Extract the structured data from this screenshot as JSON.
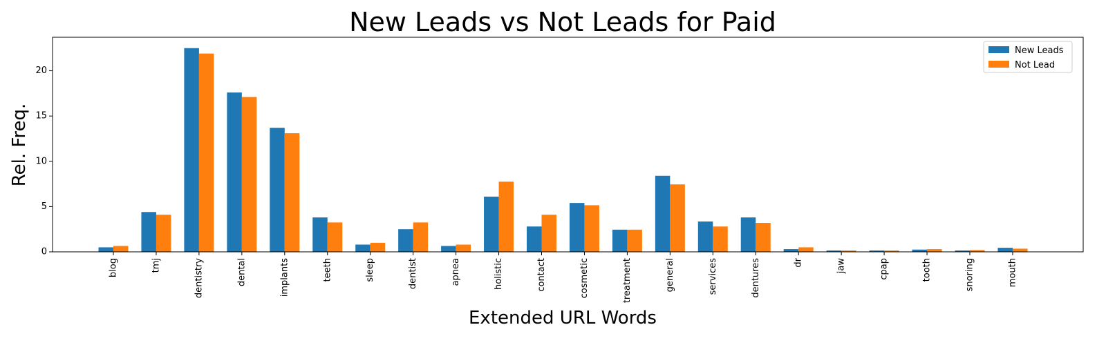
{
  "chart_data": {
    "type": "bar",
    "title": "New Leads vs Not Leads for Paid",
    "xlabel": "Extended URL Words",
    "ylabel": "Rel. Freq.",
    "ylim": [
      0,
      23.7
    ],
    "yticks": [
      0,
      5,
      10,
      15,
      20
    ],
    "grid": false,
    "legend_position": "top-right",
    "categories": [
      "blog",
      "tmj",
      "dentistry",
      "dental",
      "implants",
      "teeth",
      "sleep",
      "dentist",
      "apnea",
      "holistic",
      "contact",
      "cosmetic",
      "treatment",
      "general",
      "services",
      "dentures",
      "dr",
      "jaw",
      "cpap",
      "tooth",
      "snoring",
      "mouth"
    ],
    "series": [
      {
        "name": "New Leads",
        "color": "#1f77b4",
        "values": [
          0.5,
          4.4,
          22.5,
          17.6,
          13.7,
          3.8,
          0.8,
          2.5,
          0.65,
          6.1,
          2.8,
          5.4,
          2.45,
          8.4,
          3.35,
          3.8,
          0.3,
          0.15,
          0.15,
          0.25,
          0.15,
          0.45
        ]
      },
      {
        "name": "Not Lead",
        "color": "#ff7f0e",
        "values": [
          0.65,
          4.1,
          21.9,
          17.1,
          13.1,
          3.25,
          1.0,
          3.25,
          0.8,
          7.75,
          4.1,
          5.15,
          2.45,
          7.45,
          2.8,
          3.2,
          0.5,
          0.15,
          0.15,
          0.3,
          0.2,
          0.35
        ]
      }
    ]
  }
}
